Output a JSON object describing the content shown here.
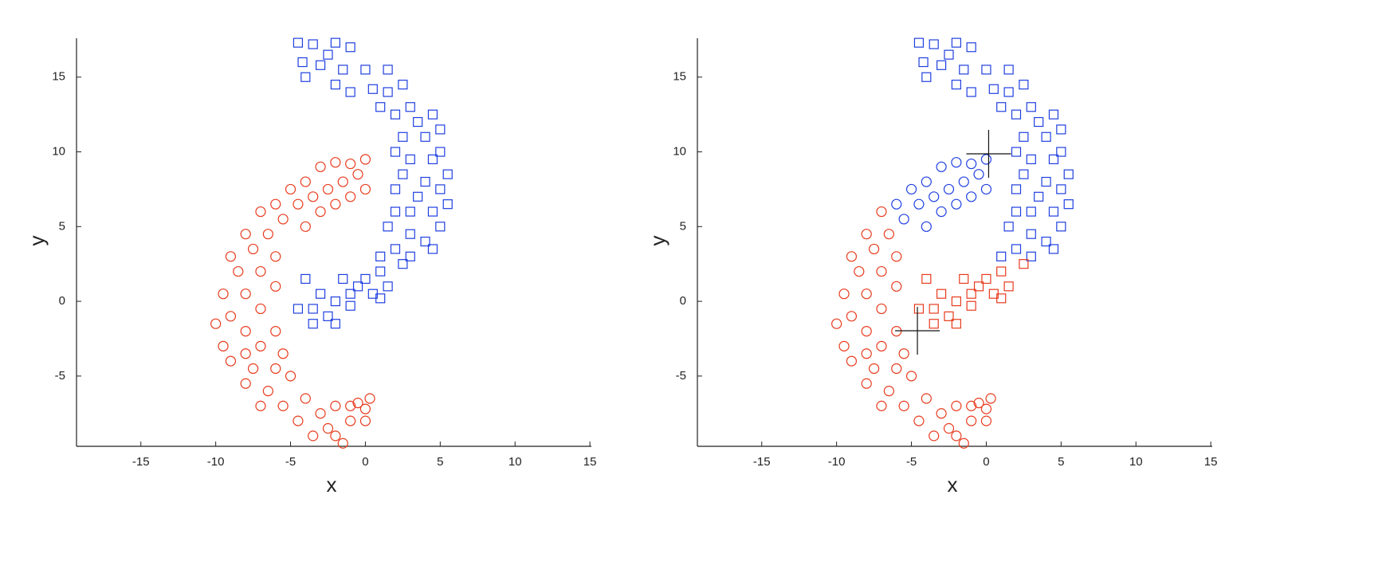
{
  "chart_data": [
    {
      "type": "scatter",
      "xlabel": "x",
      "ylabel": "y",
      "xlim": [
        -19.3,
        15.1
      ],
      "ylim": [
        -9.7,
        17.6
      ],
      "xticks": [
        -15,
        -10,
        -5,
        0,
        5,
        10,
        15
      ],
      "yticks": [
        -5,
        0,
        5,
        10,
        15
      ],
      "series": [
        {
          "color": "#1f3fe0",
          "marker": "square",
          "x": [
            -4.5,
            -3.5,
            -2,
            -1,
            -4.2,
            -3,
            -2.5,
            -1.5,
            0,
            -4,
            -2,
            -1,
            0.5,
            1.5,
            1.5,
            2.5,
            3,
            2,
            1,
            3.5,
            4.5,
            2.5,
            4,
            5,
            2,
            3,
            4.5,
            5,
            2.5,
            4,
            5.5,
            2,
            3.5,
            5,
            2,
            3,
            4.5,
            5.5,
            1.5,
            3,
            5,
            4,
            2,
            3,
            4.5,
            1,
            2.5,
            1,
            0,
            1.5,
            -0.5,
            0.5,
            -1,
            -1.5,
            -2,
            -3,
            -4,
            -3.5,
            -4.5,
            -2.5,
            -2,
            -3.5,
            -1,
            1
          ],
          "y": [
            17.3,
            17.2,
            17.3,
            17,
            16,
            15.8,
            16.5,
            15.5,
            15.5,
            15,
            14.5,
            14,
            14.2,
            15.5,
            14,
            14.5,
            13,
            12.5,
            13,
            12,
            12.5,
            11,
            11,
            11.5,
            10,
            9.5,
            9.5,
            10,
            8.5,
            8,
            8.5,
            7.5,
            7,
            7.5,
            6,
            6,
            6,
            6.5,
            5,
            4.5,
            5,
            4,
            3.5,
            3,
            3.5,
            3,
            2.5,
            2,
            1.5,
            1,
            1,
            0.5,
            0.5,
            1.5,
            0,
            0.5,
            1.5,
            -0.5,
            -0.5,
            -1,
            -1.5,
            -1.5,
            -0.3,
            0.2
          ]
        },
        {
          "color": "#e83a1c",
          "marker": "circle",
          "x": [
            0,
            -1,
            -2,
            -3,
            -1.5,
            -0.5,
            -2.5,
            -4,
            -5,
            -3.5,
            -1,
            0,
            -2,
            -3,
            -4.5,
            -6,
            -5.5,
            -4,
            -7,
            -6.5,
            -8,
            -7.5,
            -6,
            -9,
            -8.5,
            -7,
            -6,
            -9.5,
            -8,
            -7,
            -9,
            -10,
            -8,
            -6,
            -9.5,
            -8,
            -7,
            -5.5,
            -9,
            -7.5,
            -6,
            -8,
            -6.5,
            -5,
            -7,
            -5.5,
            -4,
            -4.5,
            -3,
            -2,
            -3.5,
            -2,
            -1,
            -1.5,
            0,
            0.3,
            -0.5,
            0,
            -1,
            -2.5
          ],
          "y": [
            9.5,
            9.2,
            9.3,
            9,
            8,
            8.5,
            7.5,
            8,
            7.5,
            7,
            7,
            7.5,
            6.5,
            6,
            6.5,
            6.5,
            5.5,
            5,
            6,
            4.5,
            4.5,
            3.5,
            3,
            3,
            2,
            2,
            1,
            0.5,
            0.5,
            -0.5,
            -1,
            -1.5,
            -2,
            -2,
            -3,
            -3.5,
            -3,
            -3.5,
            -4,
            -4.5,
            -4.5,
            -5.5,
            -6,
            -5,
            -7,
            -7,
            -6.5,
            -8,
            -7.5,
            -7,
            -9,
            -9,
            -8,
            -9.5,
            -8,
            -6.5,
            -6.8,
            -7.2,
            -7,
            -8.5
          ]
        }
      ]
    },
    {
      "type": "scatter",
      "xlabel": "x",
      "ylabel": "y",
      "xlim": [
        -19.3,
        15.1
      ],
      "ylim": [
        -9.7,
        17.6
      ],
      "xticks": [
        -15,
        -10,
        -5,
        0,
        5,
        10,
        15
      ],
      "yticks": [
        -5,
        0,
        5,
        10,
        15
      ],
      "series": [
        {
          "color": "#1f3fe0",
          "marker": "square",
          "x": [
            -4.5,
            -3.5,
            -2,
            -1,
            -4.2,
            -3,
            -2.5,
            -1.5,
            0,
            -4,
            -2,
            -1,
            0.5,
            1.5,
            1.5,
            2.5,
            3,
            2,
            1,
            3.5,
            4.5,
            2.5,
            4,
            5,
            2,
            3,
            4.5,
            5,
            2.5,
            4,
            5.5,
            2,
            3.5,
            5,
            2,
            3,
            4.5,
            5.5,
            1.5,
            3,
            5,
            4,
            2,
            3,
            4.5,
            1
          ],
          "y": [
            17.3,
            17.2,
            17.3,
            17,
            16,
            15.8,
            16.5,
            15.5,
            15.5,
            15,
            14.5,
            14,
            14.2,
            15.5,
            14,
            14.5,
            13,
            12.5,
            13,
            12,
            12.5,
            11,
            11,
            11.5,
            10,
            9.5,
            9.5,
            10,
            8.5,
            8,
            8.5,
            7.5,
            7,
            7.5,
            6,
            6,
            6,
            6.5,
            5,
            4.5,
            5,
            4,
            3.5,
            3,
            3.5,
            3
          ]
        },
        {
          "color": "#e83a1c",
          "marker": "square",
          "x": [
            2.5,
            1,
            0,
            1.5,
            -0.5,
            0.5,
            -1,
            -1.5,
            -2,
            -3,
            -4,
            -3.5,
            -4.5,
            -2.5,
            -2,
            -3.5,
            -1,
            1
          ],
          "y": [
            2.5,
            2,
            1.5,
            1,
            1,
            0.5,
            0.5,
            1.5,
            0,
            0.5,
            1.5,
            -0.5,
            -0.5,
            -1,
            -1.5,
            -1.5,
            -0.3,
            0.2
          ]
        },
        {
          "color": "#1f3fe0",
          "marker": "circle",
          "x": [
            0,
            -1,
            -2,
            -3,
            -1.5,
            -0.5,
            -2.5,
            -4,
            -5,
            -3.5,
            -1,
            0,
            -2,
            -3,
            -4.5,
            -6,
            -5.5,
            -4
          ],
          "y": [
            9.5,
            9.2,
            9.3,
            9,
            8,
            8.5,
            7.5,
            8,
            7.5,
            7,
            7,
            7.5,
            6.5,
            6,
            6.5,
            6.5,
            5.5,
            5
          ]
        },
        {
          "color": "#e83a1c",
          "marker": "circle",
          "x": [
            -7,
            -6.5,
            -8,
            -7.5,
            -6,
            -9,
            -8.5,
            -7,
            -6,
            -9.5,
            -8,
            -7,
            -9,
            -10,
            -8,
            -6,
            -9.5,
            -8,
            -7,
            -5.5,
            -9,
            -7.5,
            -6,
            -8,
            -6.5,
            -5,
            -7,
            -5.5,
            -4,
            -4.5,
            -3,
            -2,
            -3.5,
            -2,
            -1,
            -1.5,
            0,
            0.3,
            -0.5,
            0,
            -1,
            -2.5
          ],
          "y": [
            6,
            4.5,
            4.5,
            3.5,
            3,
            3,
            2,
            2,
            1,
            0.5,
            0.5,
            -0.5,
            -1,
            -1.5,
            -2,
            -2,
            -3,
            -3.5,
            -3,
            -3.5,
            -4,
            -4.5,
            -4.5,
            -5.5,
            -6,
            -5,
            -7,
            -7,
            -6.5,
            -8,
            -7.5,
            -7,
            -9,
            -9,
            -8,
            -9.5,
            -8,
            -6.5,
            -6.8,
            -7.2,
            -7,
            -8.5
          ]
        },
        {
          "color": "#111111",
          "marker": "plus",
          "x": [
            0.16,
            -4.6
          ],
          "y": [
            9.87,
            -1.97
          ]
        }
      ]
    }
  ]
}
